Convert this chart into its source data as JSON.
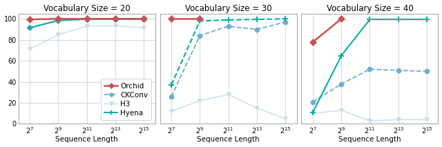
{
  "x_vals": [
    7,
    9,
    11,
    13,
    15
  ],
  "panels": [
    {
      "title": "Vocabulary Size = 20",
      "ylim": [
        0,
        105
      ],
      "yticks": [
        0,
        20,
        40,
        60,
        80,
        100
      ],
      "show_legend": true,
      "series": [
        {
          "name": "Orchid",
          "y": [
            99.5,
            100.0,
            100.0,
            100.0,
            100.0
          ],
          "color": "#c85250",
          "marker": "D",
          "linestyle": "-",
          "lw": 1.8,
          "ms": 5,
          "mew": 0.5
        },
        {
          "name": "CKConv",
          "y": [
            91.5,
            98.5,
            99.5,
            99.5,
            99.5
          ],
          "color": "#6aaed6",
          "marker": "o",
          "linestyle": "--",
          "lw": 1.3,
          "ms": 5,
          "mew": 0.5
        },
        {
          "name": "H3",
          "y": [
            71.0,
            85.0,
            93.0,
            93.5,
            91.5
          ],
          "color": "#c6dcee",
          "marker": "v",
          "linestyle": "-",
          "lw": 1.0,
          "ms": 5,
          "mew": 0.5
        },
        {
          "name": "Hyena",
          "y": [
            91.5,
            98.5,
            99.8,
            99.8,
            99.8
          ],
          "color": "#00b0a0",
          "marker": "+",
          "linestyle": "-",
          "lw": 1.5,
          "ms": 6,
          "mew": 1.5
        }
      ]
    },
    {
      "title": "Vocabulary Size = 30",
      "ylim": [
        0,
        105
      ],
      "yticks": [],
      "show_legend": false,
      "series": [
        {
          "name": "Orchid",
          "y": [
            100.0,
            100.0,
            null,
            null,
            null
          ],
          "color": "#c85250",
          "marker": "D",
          "linestyle": "-",
          "lw": 1.8,
          "ms": 5,
          "mew": 0.5
        },
        {
          "name": "CKConv",
          "y": [
            26.0,
            84.0,
            93.0,
            90.0,
            97.0
          ],
          "color": "#6aaed6",
          "marker": "o",
          "linestyle": "--",
          "lw": 1.3,
          "ms": 5,
          "mew": 0.5
        },
        {
          "name": "H3",
          "y": [
            12.0,
            22.0,
            28.0,
            15.0,
            5.0
          ],
          "color": "#c6dcee",
          "marker": "v",
          "linestyle": "-",
          "lw": 1.0,
          "ms": 5,
          "mew": 0.5
        },
        {
          "name": "Hyena",
          "y": [
            37.0,
            98.0,
            99.0,
            99.5,
            100.0
          ],
          "color": "#00b0a0",
          "marker": "+",
          "linestyle": "--",
          "lw": 1.5,
          "ms": 6,
          "mew": 1.5
        }
      ]
    },
    {
      "title": "Vocabulary Size = 40",
      "ylim": [
        0,
        105
      ],
      "yticks": [],
      "show_legend": false,
      "series": [
        {
          "name": "Orchid",
          "y": [
            78.0,
            100.0,
            null,
            null,
            null
          ],
          "color": "#c85250",
          "marker": "D",
          "linestyle": "-",
          "lw": 1.8,
          "ms": 5,
          "mew": 0.5
        },
        {
          "name": "CKConv",
          "y": [
            21.0,
            38.0,
            52.0,
            51.0,
            50.0
          ],
          "color": "#6aaed6",
          "marker": "o",
          "linestyle": "--",
          "lw": 1.3,
          "ms": 5,
          "mew": 0.5
        },
        {
          "name": "H3",
          "y": [
            10.0,
            13.0,
            3.0,
            4.0,
            4.0
          ],
          "color": "#c6dcee",
          "marker": "v",
          "linestyle": "-",
          "lw": 1.0,
          "ms": 5,
          "mew": 0.5
        },
        {
          "name": "Hyena",
          "y": [
            11.0,
            65.0,
            99.5,
            99.5,
            99.5
          ],
          "color": "#00b0a0",
          "marker": "+",
          "linestyle": "-",
          "lw": 1.5,
          "ms": 6,
          "mew": 1.5
        }
      ]
    }
  ],
  "xlabel": "Sequence Length",
  "bg_color": "#ffffff",
  "grid_color": "#d8d8d8",
  "title_fontsize": 8.5,
  "label_fontsize": 7.5,
  "tick_fontsize": 7.0,
  "legend_fontsize": 7.5
}
